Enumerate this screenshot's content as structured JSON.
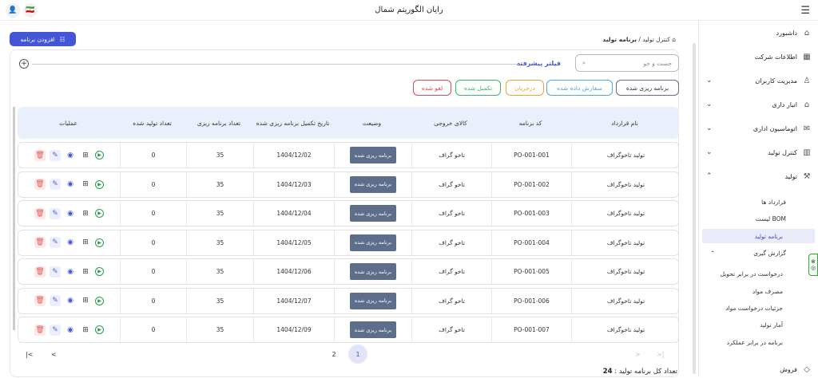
{
  "app": {
    "title": "رایان الگوریتم شمال"
  },
  "header": {
    "menu_icon": "hamburger-icon"
  },
  "breadcrumb": {
    "home_icon": "home-icon",
    "parent": "کنترل تولید",
    "separator": "/",
    "current": "برنامه تولید"
  },
  "toolbar": {
    "add_label": "افزودن برنامه"
  },
  "search": {
    "placeholder": "جست و جو"
  },
  "filter": {
    "label": "فیلتر پیشرفته"
  },
  "status_chips": [
    {
      "label": "برنامه ریزی شده",
      "color": "#5d6e8a"
    },
    {
      "label": "سفارش داده شده",
      "color": "#4ea6e0"
    },
    {
      "label": "درجریان",
      "color": "#f0a030"
    },
    {
      "label": "تکمیل شده",
      "color": "#3cb371"
    },
    {
      "label": "لغو شده",
      "color": "#e0484f"
    }
  ],
  "table": {
    "headers": [
      "نام قرارداد",
      "کد برنامه",
      "کالای خروجی",
      "وضیعت",
      "تاریخ تکمیل برنامه ریزی شده",
      "تعداد برنامه ریزی",
      "تعداد تولید شده",
      "عملیات"
    ],
    "rows": [
      {
        "contract": "تولید تاخوگراف",
        "code": "PO-001-001",
        "product": "تاخو گراف",
        "status": "برنامه ریزی شده",
        "date": "1404/12/02",
        "planned": "35",
        "produced": "0"
      },
      {
        "contract": "تولید تاخوگراف",
        "code": "PO-001-002",
        "product": "تاخو گراف",
        "status": "برنامه ریزی شده",
        "date": "1404/12/03",
        "planned": "35",
        "produced": "0"
      },
      {
        "contract": "تولید تاخوگراف",
        "code": "PO-001-003",
        "product": "تاخو گراف",
        "status": "برنامه ریزی شده",
        "date": "1404/12/04",
        "planned": "35",
        "produced": "0"
      },
      {
        "contract": "تولید تاخوگراف",
        "code": "PO-001-004",
        "product": "تاخو گراف",
        "status": "برنامه ریزی شده",
        "date": "1404/12/05",
        "planned": "35",
        "produced": "0"
      },
      {
        "contract": "تولید تاخوگراف",
        "code": "PO-001-005",
        "product": "تاخو گراف",
        "status": "برنامه ریزی شده",
        "date": "1404/12/06",
        "planned": "35",
        "produced": "0"
      },
      {
        "contract": "تولید تاخوگراف",
        "code": "PO-001-006",
        "product": "تاخو گراف",
        "status": "برنامه ریزی شده",
        "date": "1404/12/07",
        "planned": "35",
        "produced": "0"
      },
      {
        "contract": "تولید تاخوگراف",
        "code": "PO-001-007",
        "product": "تاخو گراف",
        "status": "برنامه ریزی شده",
        "date": "1404/12/09",
        "planned": "35",
        "produced": "0"
      }
    ]
  },
  "pagination": {
    "pages": [
      "1",
      "2"
    ],
    "current": "1",
    "first": "|<",
    "prev": "<",
    "next": ">",
    "last": ">|"
  },
  "footer": {
    "total_label": "تعداد کل برنامه تولید :",
    "total_value": "24"
  },
  "sidebar": {
    "items": [
      {
        "label": "داشبورد",
        "icon": "home-icon"
      },
      {
        "label": "اطلاعات شرکت",
        "icon": "building-icon"
      },
      {
        "label": "مدیریت کاربران",
        "icon": "user-icon"
      },
      {
        "label": "انبار داری",
        "icon": "warehouse-icon"
      },
      {
        "label": "اتوماسیون اداری",
        "icon": "mail-icon"
      },
      {
        "label": "کنترل تولید",
        "icon": "factory-icon"
      },
      {
        "label": "تولید",
        "icon": "tools-icon"
      },
      {
        "label": "فروش",
        "icon": "tag-icon"
      }
    ],
    "production_sub": [
      "قرارداد ها",
      "لیست BOM",
      "برنامه تولید",
      "گزارش گیری"
    ],
    "report_sub": [
      "درخواست در برابر تحویل",
      "مصرف مواد",
      "جزئیات درخواست مواد",
      "آمار تولید",
      "برنامه در برابر عملکرد"
    ]
  }
}
